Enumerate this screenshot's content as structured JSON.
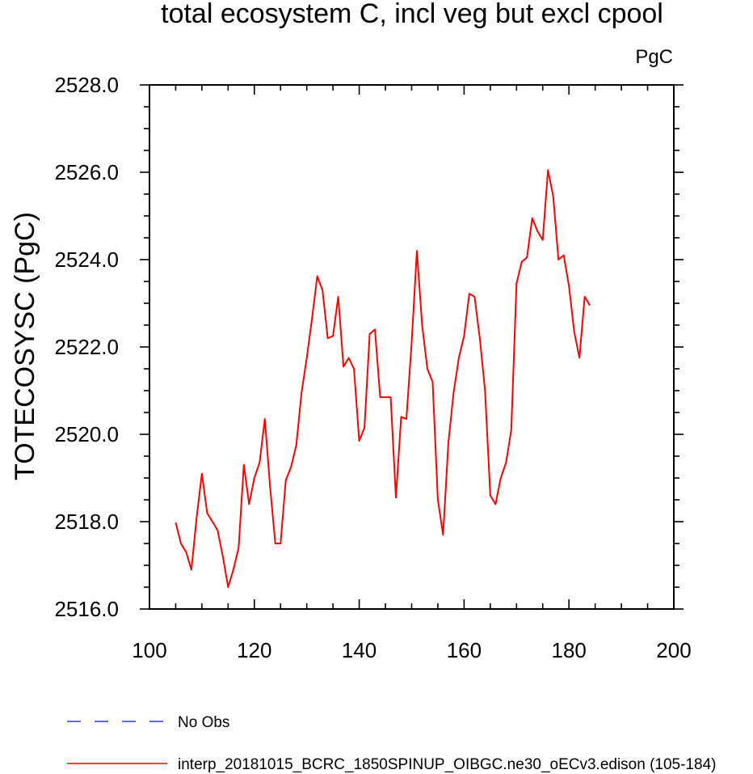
{
  "chart_data": {
    "type": "line",
    "title": "total ecosystem C, incl veg but excl cpool",
    "units_label": "PgC",
    "xlabel": "",
    "ylabel": "TOTECOSYSC  (PgC)",
    "xlim": [
      100,
      200
    ],
    "ylim": [
      2516.0,
      2528.0
    ],
    "x_ticks": [
      "100",
      "120",
      "140",
      "160",
      "180",
      "200"
    ],
    "x_tick_values": [
      100,
      120,
      140,
      160,
      180,
      200
    ],
    "y_ticks": [
      "2516.0",
      "2518.0",
      "2520.0",
      "2522.0",
      "2524.0",
      "2526.0",
      "2528.0"
    ],
    "y_tick_values": [
      2516.0,
      2518.0,
      2520.0,
      2522.0,
      2524.0,
      2526.0,
      2528.0
    ],
    "x_minor_step": 5,
    "y_minor_step": 0.5,
    "grid": false,
    "legend_placement": "bottom",
    "series": [
      {
        "name": "No Obs",
        "color": "#3333ff",
        "dash": "dashed",
        "x": [],
        "y": []
      },
      {
        "name": "interp_20181015_BCRC_1850SPINUP_OIBGC.ne30_oECv3.edison (105-184)",
        "color": "#ff0000",
        "dash": "solid",
        "x": [
          105,
          106,
          107,
          108,
          109,
          110,
          111,
          112,
          113,
          114,
          115,
          116,
          117,
          118,
          119,
          120,
          121,
          122,
          123,
          124,
          125,
          126,
          127,
          128,
          129,
          130,
          131,
          132,
          133,
          134,
          135,
          136,
          137,
          138,
          139,
          140,
          141,
          142,
          143,
          144,
          145,
          146,
          147,
          148,
          149,
          150,
          151,
          152,
          153,
          154,
          155,
          156,
          157,
          158,
          159,
          160,
          161,
          162,
          163,
          164,
          165,
          166,
          167,
          168,
          169,
          170,
          171,
          172,
          173,
          174,
          175,
          176,
          177,
          178,
          179,
          180,
          181,
          182,
          183,
          184
        ],
        "y": [
          2517.98,
          2517.5,
          2517.3,
          2516.9,
          2518.1,
          2519.1,
          2518.2,
          2518.0,
          2517.8,
          2517.2,
          2516.5,
          2516.9,
          2517.4,
          2519.3,
          2518.4,
          2519.0,
          2519.35,
          2520.35,
          2518.8,
          2517.5,
          2517.5,
          2518.95,
          2519.25,
          2519.75,
          2520.95,
          2521.75,
          2522.65,
          2523.62,
          2523.3,
          2522.2,
          2522.25,
          2523.15,
          2521.55,
          2521.75,
          2521.5,
          2519.85,
          2520.15,
          2522.3,
          2522.4,
          2520.85,
          2520.85,
          2520.85,
          2518.55,
          2520.4,
          2520.35,
          2522.1,
          2524.2,
          2522.5,
          2521.5,
          2521.2,
          2518.5,
          2517.7,
          2519.8,
          2520.95,
          2521.75,
          2522.25,
          2523.22,
          2523.15,
          2522.2,
          2521.0,
          2518.6,
          2518.4,
          2519.0,
          2519.35,
          2520.1,
          2523.45,
          2523.95,
          2524.05,
          2524.95,
          2524.65,
          2524.45,
          2526.05,
          2525.45,
          2524.0,
          2524.1,
          2523.4,
          2522.35,
          2521.75,
          2523.15,
          2522.95
        ]
      }
    ]
  }
}
